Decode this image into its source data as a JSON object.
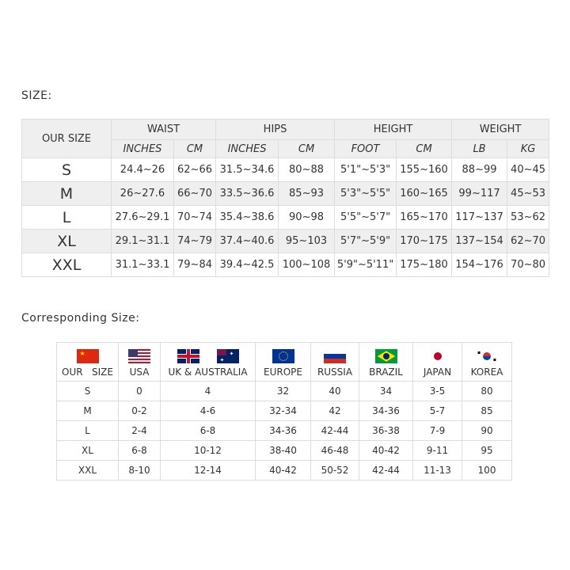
{
  "size_title": "SIZE:",
  "size_table": {
    "our_size": "OUR SIZE",
    "groups": [
      "WAIST",
      "HIPS",
      "HEIGHT",
      "WEIGHT"
    ],
    "units": [
      "INCHES",
      "CM",
      "INCHES",
      "CM",
      "FOOT",
      "CM",
      "LB",
      "KG"
    ],
    "rows": [
      [
        "S",
        "24.4~26",
        "62~66",
        "31.5~34.6",
        "80~88",
        "5'1\"~5'3\"",
        "155~160",
        "88~99",
        "40~45"
      ],
      [
        "M",
        "26~27.6",
        "66~70",
        "33.5~36.6",
        "85~93",
        "5'3\"~5'5\"",
        "160~165",
        "99~117",
        "45~53"
      ],
      [
        "L",
        "27.6~29.1",
        "70~74",
        "35.4~38.6",
        "90~98",
        "5'5\"~5'7\"",
        "165~170",
        "117~137",
        "53~62"
      ],
      [
        "XL",
        "29.1~31.1",
        "74~79",
        "37.4~40.6",
        "95~103",
        "5'7\"~5'9\"",
        "170~175",
        "137~154",
        "62~70"
      ],
      [
        "XXL",
        "31.1~33.1",
        "79~84",
        "39.4~42.5",
        "100~108",
        "5'9\"~5'11\"",
        "175~180",
        "154~176",
        "70~80"
      ]
    ]
  },
  "corr_title": "Corresponding Size:",
  "corr_table": {
    "headers": [
      "OUR   SIZE",
      "USA",
      "UK & AUSTRALIA",
      "EUROPE",
      "RUSSIA",
      "BRAZIL",
      "JAPAN",
      "KOREA"
    ],
    "flag_icons": [
      "china-flag-icon",
      "usa-flag-icon",
      "uk-flag-icon",
      "australia-flag-icon",
      "eu-flag-icon",
      "russia-flag-icon",
      "brazil-flag-icon",
      "japan-flag-icon",
      "korea-flag-icon"
    ],
    "rows": [
      [
        "S",
        "0",
        "4",
        "32",
        "40",
        "34",
        "3-5",
        "80"
      ],
      [
        "M",
        "0-2",
        "4-6",
        "32-34",
        "42",
        "34-36",
        "5-7",
        "85"
      ],
      [
        "L",
        "2-4",
        "6-8",
        "34-36",
        "42-44",
        "36-38",
        "7-9",
        "90"
      ],
      [
        "XL",
        "6-8",
        "10-12",
        "38-40",
        "46-48",
        "40-42",
        "9-11",
        "95"
      ],
      [
        "XXL",
        "8-10",
        "12-14",
        "40-42",
        "50-52",
        "42-44",
        "11-13",
        "100"
      ]
    ]
  }
}
